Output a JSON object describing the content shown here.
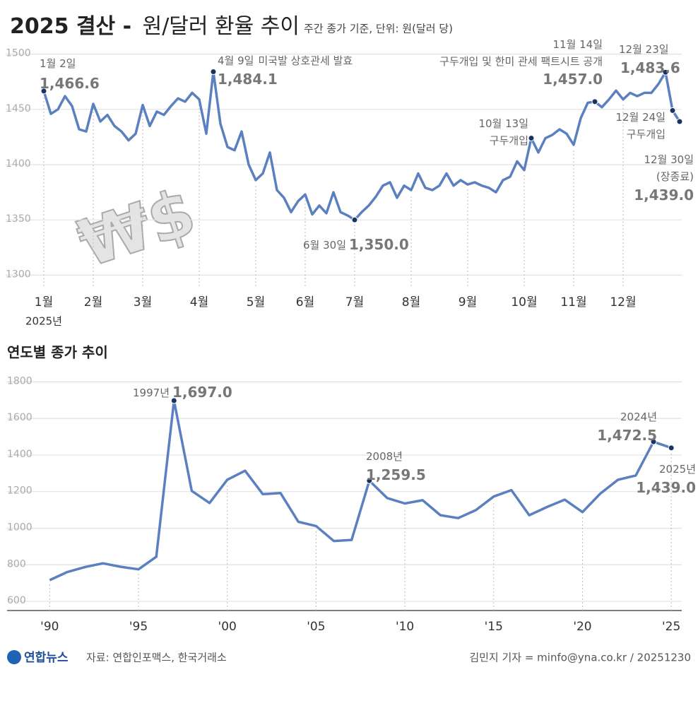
{
  "header": {
    "title_bold": "2025 결산 -",
    "title_light": "원/달러 환율 추이",
    "subtitle": "주간 종가 기준, 단위: 원(달러 당)",
    "icon": "₩$"
  },
  "chart_data": [
    {
      "type": "line",
      "color": "#5b80c0",
      "marker_color": "#16345f",
      "grid": true,
      "ylim": [
        1290,
        1510
      ],
      "yticks": [
        1300,
        1350,
        1400,
        1450,
        1500
      ],
      "x_note": "2025년",
      "categories": [
        "1월",
        null,
        null,
        null,
        null,
        null,
        null,
        "2월",
        null,
        null,
        null,
        null,
        null,
        null,
        "3월",
        null,
        null,
        null,
        null,
        null,
        null,
        null,
        "4월",
        null,
        null,
        null,
        null,
        null,
        null,
        null,
        "5월",
        null,
        null,
        null,
        null,
        null,
        null,
        "6월",
        null,
        null,
        null,
        null,
        null,
        null,
        "7월",
        null,
        null,
        null,
        null,
        null,
        null,
        null,
        "8월",
        null,
        null,
        null,
        null,
        null,
        null,
        null,
        "9월",
        null,
        null,
        null,
        null,
        null,
        null,
        null,
        "10월",
        null,
        null,
        null,
        null,
        null,
        null,
        "11월",
        null,
        null,
        null,
        null,
        null,
        null,
        "12월",
        null,
        null,
        null,
        null,
        null,
        null,
        null,
        null
      ],
      "values": [
        1466.6,
        1446,
        1450,
        1462,
        1453,
        1432,
        1430,
        1455,
        1439,
        1445,
        1435,
        1430,
        1422,
        1428,
        1454,
        1435,
        1448,
        1445,
        1453,
        1460,
        1457,
        1465,
        1459,
        1428,
        1484.1,
        1437,
        1416,
        1413,
        1430,
        1400,
        1386,
        1392,
        1411,
        1377,
        1370,
        1357,
        1367,
        1373,
        1355,
        1363,
        1356,
        1375,
        1357,
        1354,
        1350.0,
        1357,
        1363,
        1371,
        1381,
        1384,
        1370,
        1381,
        1377,
        1392,
        1379,
        1377,
        1381,
        1392,
        1381,
        1386,
        1382,
        1384,
        1381,
        1379,
        1375,
        1386,
        1389,
        1403,
        1395,
        1424,
        1411,
        1424,
        1427,
        1432,
        1428,
        1418,
        1442,
        1456,
        1457.0,
        1452,
        1459,
        1467,
        1459,
        1465,
        1462,
        1465,
        1465,
        1473,
        1483.6,
        1449,
        1439.0
      ],
      "value_labels": [
        "1,466.6",
        null,
        null,
        null,
        null,
        null,
        null,
        null,
        null,
        null,
        null,
        null,
        null,
        null,
        null,
        null,
        null,
        null,
        null,
        null,
        null,
        null,
        null,
        null,
        "1,484.1",
        null,
        null,
        null,
        null,
        null,
        null,
        null,
        null,
        null,
        null,
        null,
        null,
        null,
        null,
        null,
        null,
        null,
        null,
        null,
        "1,350.0",
        null,
        null,
        null,
        null,
        null,
        null,
        null,
        null,
        null,
        null,
        null,
        null,
        null,
        null,
        null,
        null,
        null,
        null,
        null,
        null,
        null,
        null,
        null,
        null,
        null,
        null,
        null,
        null,
        null,
        null,
        null,
        null,
        null,
        "1,457.0",
        null,
        null,
        null,
        null,
        null,
        null,
        null,
        null,
        null,
        "1,483.6",
        null,
        "1,439.0"
      ],
      "date_labels": [
        "1월 2일",
        null,
        null,
        null,
        null,
        null,
        null,
        null,
        null,
        null,
        null,
        null,
        null,
        null,
        null,
        null,
        null,
        null,
        null,
        null,
        null,
        null,
        null,
        null,
        "4월 9일",
        null,
        null,
        null,
        null,
        null,
        null,
        null,
        null,
        null,
        null,
        null,
        null,
        null,
        null,
        null,
        null,
        null,
        null,
        null,
        "6월 30일",
        null,
        null,
        null,
        null,
        null,
        null,
        null,
        null,
        null,
        null,
        null,
        null,
        null,
        null,
        null,
        null,
        null,
        null,
        null,
        null,
        null,
        null,
        null,
        null,
        "10월 13일",
        null,
        null,
        null,
        null,
        null,
        null,
        null,
        null,
        "11월 14일",
        null,
        null,
        null,
        null,
        null,
        null,
        null,
        null,
        null,
        "12월 23일",
        "12월 24일",
        "12월 30일"
      ],
      "event_labels": [
        null,
        null,
        null,
        null,
        null,
        null,
        null,
        null,
        null,
        null,
        null,
        null,
        null,
        null,
        null,
        null,
        null,
        null,
        null,
        null,
        null,
        null,
        null,
        null,
        "미국발 상호관세 발효",
        null,
        null,
        null,
        null,
        null,
        null,
        null,
        null,
        null,
        null,
        null,
        null,
        null,
        null,
        null,
        null,
        null,
        null,
        null,
        null,
        null,
        null,
        null,
        null,
        null,
        null,
        null,
        null,
        null,
        null,
        null,
        null,
        null,
        null,
        null,
        null,
        null,
        null,
        null,
        null,
        null,
        null,
        null,
        null,
        "구두개입",
        null,
        null,
        null,
        null,
        null,
        null,
        null,
        null,
        "구두개입 및 한미 관세 팩트시트 공개",
        null,
        null,
        null,
        null,
        null,
        null,
        null,
        null,
        null,
        null,
        "구두개입",
        "(장종료)"
      ]
    },
    {
      "type": "line",
      "title": "연도별 종가 추이",
      "color": "#5b80c0",
      "marker_color": "#16345f",
      "grid": true,
      "xlim": [
        1987.6,
        2025.59
      ],
      "ylim": [
        550,
        1840
      ],
      "yticks": [
        600,
        800,
        1000,
        1200,
        1400,
        1600,
        1800
      ],
      "xticks": [
        {
          "value": 1990,
          "label": "'90"
        },
        {
          "value": 1995,
          "label": "'95"
        },
        {
          "value": 2000,
          "label": "'00"
        },
        {
          "value": 2005,
          "label": "'05"
        },
        {
          "value": 2010,
          "label": "'10"
        },
        {
          "value": 2015,
          "label": "'15"
        },
        {
          "value": 2020,
          "label": "'20"
        },
        {
          "value": 2025,
          "label": "'25"
        }
      ],
      "x": [
        1990,
        1991,
        1992,
        1993,
        1994,
        1995,
        1996,
        1997,
        1998,
        1999,
        2000,
        2001,
        2002,
        2003,
        2004,
        2005,
        2006,
        2007,
        2008,
        2009,
        2010,
        2011,
        2012,
        2013,
        2014,
        2015,
        2016,
        2017,
        2018,
        2019,
        2020,
        2021,
        2022,
        2023,
        2024,
        2025
      ],
      "values": [
        716,
        761,
        788,
        808,
        789,
        775,
        844,
        1697.0,
        1204,
        1138,
        1265,
        1314,
        1186,
        1192,
        1035,
        1012,
        930,
        936,
        1259.5,
        1165,
        1135,
        1153,
        1071,
        1055,
        1099,
        1173,
        1208,
        1071,
        1116,
        1156,
        1088,
        1189,
        1265,
        1288,
        1472.5,
        1439.0
      ],
      "value_labels": [
        null,
        null,
        null,
        null,
        null,
        null,
        null,
        "1,697.0",
        null,
        null,
        null,
        null,
        null,
        null,
        null,
        null,
        null,
        null,
        "1,259.5",
        null,
        null,
        null,
        null,
        null,
        null,
        null,
        null,
        null,
        null,
        null,
        null,
        null,
        null,
        null,
        "1,472.5",
        "1,439.0"
      ],
      "point_labels": [
        null,
        null,
        null,
        null,
        null,
        null,
        null,
        "1997년",
        null,
        null,
        null,
        null,
        null,
        null,
        null,
        null,
        null,
        null,
        "2008년",
        null,
        null,
        null,
        null,
        null,
        null,
        null,
        null,
        null,
        null,
        null,
        null,
        null,
        null,
        null,
        "2024년",
        "2025년"
      ]
    }
  ],
  "footer": {
    "logo": "연합뉴스",
    "source": "자료: 연합인포맥스, 한국거래소",
    "credit": "김민지 기자 = minfo@yna.co.kr / 20251230"
  }
}
